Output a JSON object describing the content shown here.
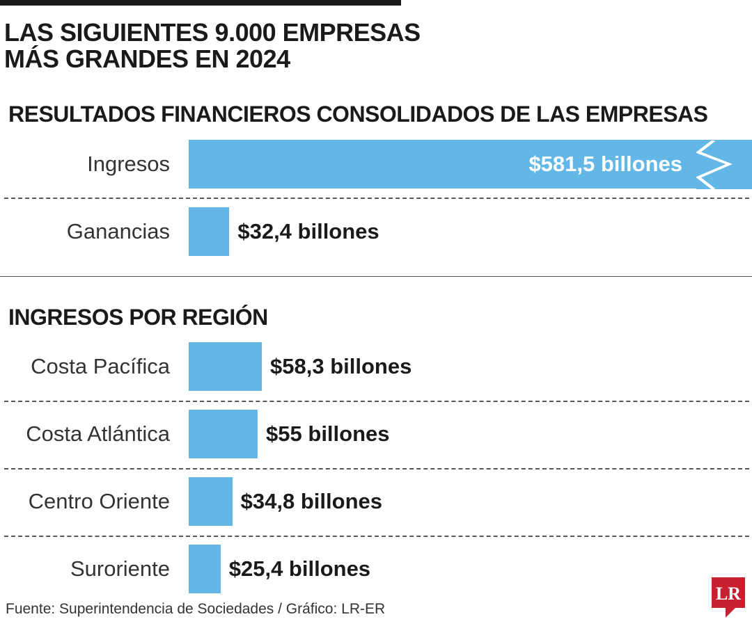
{
  "headline": [
    "LAS SIGUIENTES 9.000 EMPRESAS",
    "MÁS GRANDES EN 2024"
  ],
  "source": "Fuente: Superintendencia de Sociedades / Gráfico: LR-ER",
  "logo": "LR",
  "colors": {
    "bar": "#62b7e6",
    "logo": "#c8202f",
    "text": "#1a1a1a"
  },
  "chart_data": [
    {
      "type": "bar",
      "orientation": "horizontal",
      "title": "RESULTADOS FINANCIEROS CONSOLIDADOS DE LAS EMPRESAS",
      "unit": "billones",
      "categories": [
        "Ingresos",
        "Ganancias"
      ],
      "values": [
        581.5,
        32.4
      ],
      "value_labels": [
        "$581,5 billones",
        "$32,4 billones"
      ],
      "axis_break": "Ingresos"
    },
    {
      "type": "bar",
      "orientation": "horizontal",
      "title": "INGRESOS POR REGIÓN",
      "unit": "billones",
      "categories": [
        "Costa Pacífica",
        "Costa Atlántica",
        "Centro Oriente",
        "Suroriente"
      ],
      "values": [
        58.3,
        55,
        34.8,
        25.4
      ],
      "value_labels": [
        "$58,3 billones",
        "$55 billones",
        "$34,8 billones",
        "$25,4 billones"
      ]
    }
  ]
}
